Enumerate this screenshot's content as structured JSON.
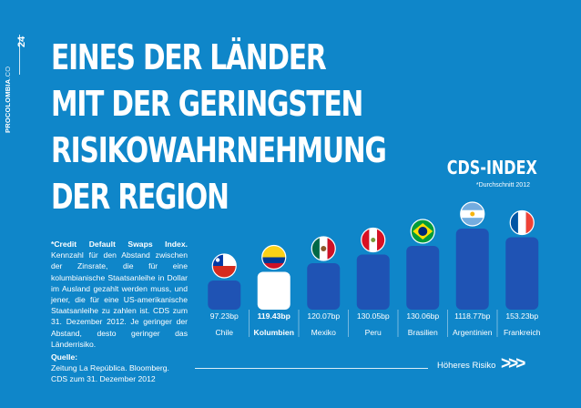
{
  "page": {
    "number": "24",
    "brand": "PROCOLOMBIA",
    "brand_suffix": ".CO"
  },
  "headline": {
    "lines": [
      "EINES DER LÄNDER",
      "MIT DER GERINGSTEN",
      "RISIKOWAHRNEHMUNG",
      "DER REGION"
    ]
  },
  "description": {
    "term": "*Credit Default Swaps Index.",
    "text": "Kennzahl für den Abstand zwischen der Zinsrate, die für eine kolumbianische Staatsanleihe in Dollar im Ausland gezahlt werden muss, und jener, die für eine US-amerikanische Staatsanleihe zu zahlen ist. CDS zum 31. Dezember 2012. Je geringer der Abstand, desto geringer das Länderrisiko."
  },
  "source": {
    "label": "Quelle:",
    "text": "Zeitung La República. Bloomberg. CDS zum 31. Dezember 2012"
  },
  "footer": {
    "risk_label": "Höheres Risiko",
    "arrows": ">>>"
  },
  "colors": {
    "background": "#0f86c9",
    "bar": "#1f53b4",
    "highlight_bar": "#ffffff",
    "text": "#ffffff"
  },
  "chart_data": {
    "type": "bar",
    "title": "CDS-INDEX",
    "subtitle": "*Durchschnitt 2012",
    "categories": [
      "Chile",
      "Kolumbien",
      "Mexiko",
      "Peru",
      "Brasilien",
      "Argentinien",
      "Frankreich"
    ],
    "values": [
      97.23,
      119.43,
      120.07,
      130.05,
      130.06,
      1118.77,
      153.23
    ],
    "value_labels": [
      "97.23bp",
      "119.43bp",
      "120.07bp",
      "130.05bp",
      "130.06bp",
      "1118.77bp",
      "153.23bp"
    ],
    "highlight": "Kolumbien",
    "flags": [
      "chile-flag-icon",
      "colombia-flag-icon",
      "mexico-flag-icon",
      "peru-flag-icon",
      "brazil-flag-icon",
      "argentina-flag-icon",
      "france-flag-icon"
    ]
  }
}
